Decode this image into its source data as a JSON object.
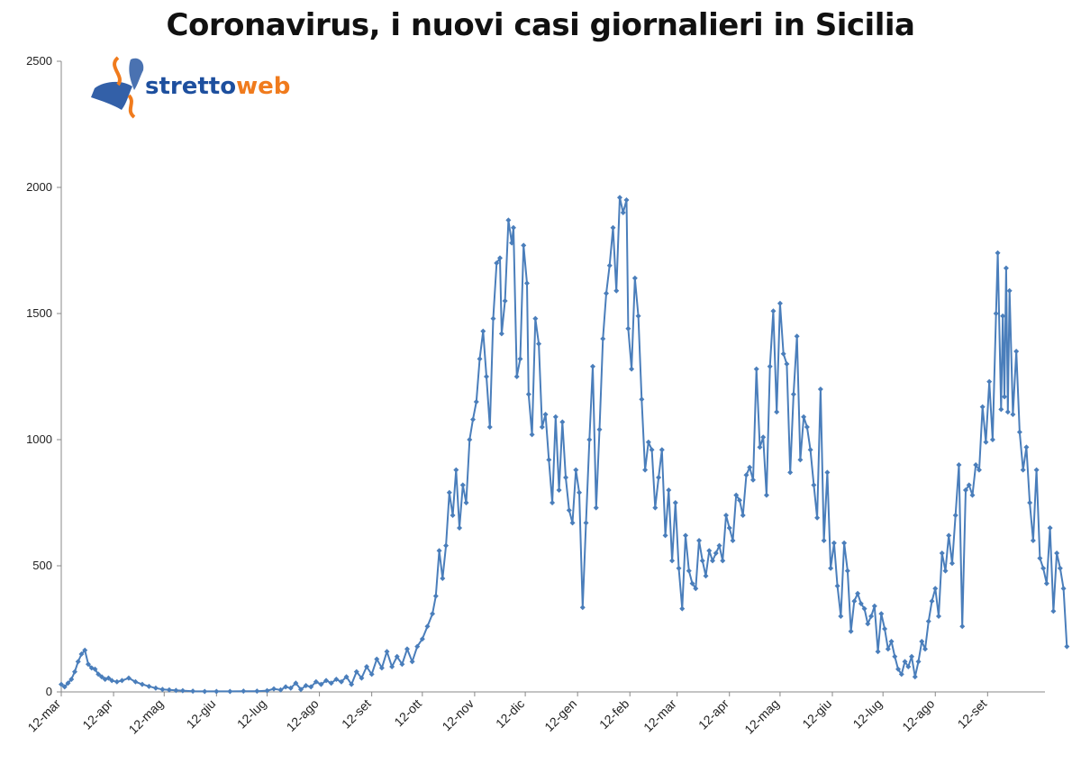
{
  "chart_data": {
    "type": "line",
    "title": "Coronavirus, i nuovi casi giornalieri in Sicilia",
    "xlabel": "",
    "ylabel": "",
    "ylim": [
      0,
      2500
    ],
    "yticks": [
      0,
      500,
      1000,
      1500,
      2000,
      2500
    ],
    "grid": false,
    "legend": "none",
    "x_range_days": [
      0,
      583
    ],
    "xticks": [
      {
        "label": "12-mar",
        "day": 0
      },
      {
        "label": "12-apr",
        "day": 31
      },
      {
        "label": "12-mag",
        "day": 61
      },
      {
        "label": "12-giu",
        "day": 92
      },
      {
        "label": "12-lug",
        "day": 122
      },
      {
        "label": "12-ago",
        "day": 153
      },
      {
        "label": "12-set",
        "day": 184
      },
      {
        "label": "12-ott",
        "day": 214
      },
      {
        "label": "12-nov",
        "day": 245
      },
      {
        "label": "12-dic",
        "day": 275
      },
      {
        "label": "12-gen",
        "day": 306
      },
      {
        "label": "12-feb",
        "day": 337
      },
      {
        "label": "12-mar",
        "day": 365
      },
      {
        "label": "12-apr",
        "day": 396
      },
      {
        "label": "12-mag",
        "day": 426
      },
      {
        "label": "12-giu",
        "day": 457
      },
      {
        "label": "12-lug",
        "day": 487
      },
      {
        "label": "12-ago",
        "day": 518
      },
      {
        "label": "12-set",
        "day": 549
      }
    ],
    "series": [
      {
        "name": "",
        "color": "#4a7ebb",
        "points": [
          [
            0,
            30
          ],
          [
            2,
            20
          ],
          [
            4,
            35
          ],
          [
            6,
            50
          ],
          [
            8,
            80
          ],
          [
            10,
            120
          ],
          [
            12,
            150
          ],
          [
            14,
            165
          ],
          [
            16,
            110
          ],
          [
            18,
            95
          ],
          [
            20,
            90
          ],
          [
            22,
            70
          ],
          [
            24,
            60
          ],
          [
            26,
            50
          ],
          [
            28,
            55
          ],
          [
            30,
            45
          ],
          [
            33,
            40
          ],
          [
            36,
            45
          ],
          [
            40,
            55
          ],
          [
            44,
            40
          ],
          [
            48,
            30
          ],
          [
            52,
            22
          ],
          [
            56,
            15
          ],
          [
            60,
            10
          ],
          [
            64,
            8
          ],
          [
            68,
            6
          ],
          [
            72,
            5
          ],
          [
            78,
            3
          ],
          [
            85,
            2
          ],
          [
            92,
            2
          ],
          [
            100,
            2
          ],
          [
            108,
            3
          ],
          [
            116,
            3
          ],
          [
            122,
            5
          ],
          [
            126,
            12
          ],
          [
            130,
            8
          ],
          [
            133,
            20
          ],
          [
            136,
            15
          ],
          [
            139,
            35
          ],
          [
            142,
            10
          ],
          [
            145,
            25
          ],
          [
            148,
            20
          ],
          [
            151,
            40
          ],
          [
            154,
            30
          ],
          [
            157,
            45
          ],
          [
            160,
            35
          ],
          [
            163,
            50
          ],
          [
            166,
            40
          ],
          [
            169,
            60
          ],
          [
            172,
            30
          ],
          [
            175,
            80
          ],
          [
            178,
            55
          ],
          [
            181,
            100
          ],
          [
            184,
            70
          ],
          [
            187,
            130
          ],
          [
            190,
            95
          ],
          [
            193,
            160
          ],
          [
            196,
            100
          ],
          [
            199,
            140
          ],
          [
            202,
            110
          ],
          [
            205,
            170
          ],
          [
            208,
            120
          ],
          [
            211,
            180
          ],
          [
            214,
            210
          ],
          [
            217,
            260
          ],
          [
            220,
            310
          ],
          [
            222,
            380
          ],
          [
            224,
            560
          ],
          [
            226,
            450
          ],
          [
            228,
            580
          ],
          [
            230,
            790
          ],
          [
            232,
            700
          ],
          [
            234,
            880
          ],
          [
            236,
            650
          ],
          [
            238,
            820
          ],
          [
            240,
            750
          ],
          [
            242,
            1000
          ],
          [
            244,
            1080
          ],
          [
            246,
            1150
          ],
          [
            248,
            1320
          ],
          [
            250,
            1430
          ],
          [
            252,
            1250
          ],
          [
            254,
            1050
          ],
          [
            256,
            1480
          ],
          [
            258,
            1700
          ],
          [
            260,
            1720
          ],
          [
            261,
            1420
          ],
          [
            263,
            1550
          ],
          [
            265,
            1870
          ],
          [
            267,
            1780
          ],
          [
            268,
            1840
          ],
          [
            270,
            1250
          ],
          [
            272,
            1320
          ],
          [
            274,
            1770
          ],
          [
            276,
            1620
          ],
          [
            277,
            1180
          ],
          [
            279,
            1020
          ],
          [
            281,
            1480
          ],
          [
            283,
            1380
          ],
          [
            285,
            1050
          ],
          [
            287,
            1100
          ],
          [
            289,
            920
          ],
          [
            291,
            750
          ],
          [
            293,
            1090
          ],
          [
            295,
            800
          ],
          [
            297,
            1070
          ],
          [
            299,
            850
          ],
          [
            301,
            720
          ],
          [
            303,
            670
          ],
          [
            305,
            880
          ],
          [
            307,
            790
          ],
          [
            309,
            335
          ],
          [
            311,
            670
          ],
          [
            313,
            1000
          ],
          [
            315,
            1290
          ],
          [
            317,
            730
          ],
          [
            319,
            1040
          ],
          [
            321,
            1400
          ],
          [
            323,
            1580
          ],
          [
            325,
            1690
          ],
          [
            327,
            1840
          ],
          [
            329,
            1590
          ],
          [
            331,
            1960
          ],
          [
            333,
            1900
          ],
          [
            335,
            1950
          ],
          [
            336,
            1440
          ],
          [
            338,
            1280
          ],
          [
            340,
            1640
          ],
          [
            342,
            1490
          ],
          [
            344,
            1160
          ],
          [
            346,
            880
          ],
          [
            348,
            990
          ],
          [
            350,
            960
          ],
          [
            352,
            730
          ],
          [
            354,
            850
          ],
          [
            356,
            960
          ],
          [
            358,
            620
          ],
          [
            360,
            800
          ],
          [
            362,
            520
          ],
          [
            364,
            750
          ],
          [
            366,
            490
          ],
          [
            368,
            330
          ],
          [
            370,
            620
          ],
          [
            372,
            480
          ],
          [
            374,
            430
          ],
          [
            376,
            410
          ],
          [
            378,
            600
          ],
          [
            380,
            520
          ],
          [
            382,
            460
          ],
          [
            384,
            560
          ],
          [
            386,
            520
          ],
          [
            388,
            550
          ],
          [
            390,
            580
          ],
          [
            392,
            520
          ],
          [
            394,
            700
          ],
          [
            396,
            650
          ],
          [
            398,
            600
          ],
          [
            400,
            780
          ],
          [
            402,
            760
          ],
          [
            404,
            700
          ],
          [
            406,
            860
          ],
          [
            408,
            890
          ],
          [
            410,
            840
          ],
          [
            412,
            1280
          ],
          [
            414,
            970
          ],
          [
            416,
            1010
          ],
          [
            418,
            780
          ],
          [
            420,
            1290
          ],
          [
            422,
            1510
          ],
          [
            424,
            1110
          ],
          [
            426,
            1540
          ],
          [
            428,
            1340
          ],
          [
            430,
            1300
          ],
          [
            432,
            870
          ],
          [
            434,
            1180
          ],
          [
            436,
            1410
          ],
          [
            438,
            920
          ],
          [
            440,
            1090
          ],
          [
            442,
            1050
          ],
          [
            444,
            960
          ],
          [
            446,
            820
          ],
          [
            448,
            690
          ],
          [
            450,
            1200
          ],
          [
            452,
            600
          ],
          [
            454,
            870
          ],
          [
            456,
            490
          ],
          [
            458,
            590
          ],
          [
            460,
            420
          ],
          [
            462,
            300
          ],
          [
            464,
            590
          ],
          [
            466,
            480
          ],
          [
            468,
            240
          ],
          [
            470,
            360
          ],
          [
            472,
            390
          ],
          [
            474,
            350
          ],
          [
            476,
            330
          ],
          [
            478,
            270
          ],
          [
            480,
            300
          ],
          [
            482,
            340
          ],
          [
            484,
            160
          ],
          [
            486,
            310
          ],
          [
            488,
            250
          ],
          [
            490,
            170
          ],
          [
            492,
            200
          ],
          [
            494,
            140
          ],
          [
            496,
            90
          ],
          [
            498,
            70
          ],
          [
            500,
            120
          ],
          [
            502,
            100
          ],
          [
            504,
            140
          ],
          [
            506,
            60
          ],
          [
            508,
            120
          ],
          [
            510,
            200
          ],
          [
            512,
            170
          ],
          [
            514,
            280
          ],
          [
            516,
            360
          ],
          [
            518,
            410
          ],
          [
            520,
            300
          ],
          [
            522,
            550
          ],
          [
            524,
            480
          ],
          [
            526,
            620
          ],
          [
            528,
            510
          ],
          [
            530,
            700
          ],
          [
            532,
            900
          ],
          [
            534,
            260
          ],
          [
            536,
            800
          ],
          [
            538,
            820
          ],
          [
            540,
            780
          ],
          [
            542,
            900
          ],
          [
            544,
            880
          ],
          [
            546,
            1130
          ],
          [
            548,
            990
          ],
          [
            550,
            1230
          ],
          [
            552,
            1000
          ],
          [
            554,
            1500
          ],
          [
            555,
            1740
          ],
          [
            557,
            1120
          ],
          [
            558,
            1490
          ],
          [
            559,
            1170
          ],
          [
            560,
            1680
          ],
          [
            561,
            1110
          ],
          [
            562,
            1590
          ],
          [
            564,
            1100
          ],
          [
            566,
            1350
          ],
          [
            568,
            1030
          ],
          [
            570,
            880
          ],
          [
            572,
            970
          ],
          [
            574,
            750
          ],
          [
            576,
            600
          ],
          [
            578,
            880
          ],
          [
            580,
            530
          ],
          [
            582,
            490
          ],
          [
            584,
            430
          ],
          [
            586,
            650
          ],
          [
            588,
            320
          ],
          [
            590,
            550
          ],
          [
            592,
            490
          ],
          [
            594,
            410
          ],
          [
            596,
            180
          ]
        ]
      }
    ]
  },
  "logo": {
    "part1": "stretto",
    "part2": "web",
    "color1": "#1d4f9e",
    "color2": "#f07b1d"
  }
}
